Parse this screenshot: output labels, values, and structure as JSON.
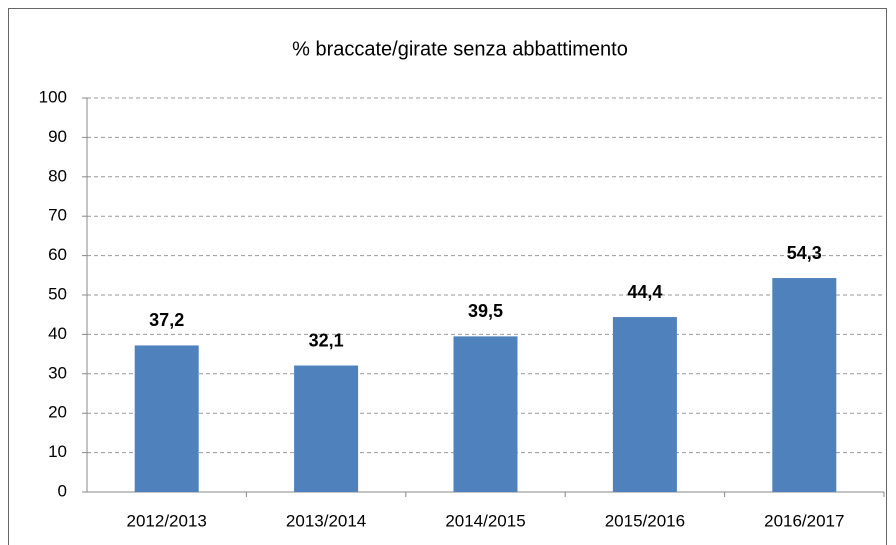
{
  "chart_data": {
    "type": "bar",
    "title": "% braccate/girate senza abbattimento",
    "categories": [
      "2012/2013",
      "2013/2014",
      "2014/2015",
      "2015/2016",
      "2016/2017"
    ],
    "values": [
      37.2,
      32.1,
      39.5,
      44.4,
      54.3
    ],
    "value_labels": [
      "37,2",
      "32,1",
      "39,5",
      "44,4",
      "54,3"
    ],
    "color": "#4f81bd",
    "ylim": [
      0,
      100
    ],
    "yticks": [
      0,
      10,
      20,
      30,
      40,
      50,
      60,
      70,
      80,
      90,
      100
    ],
    "grid": true
  }
}
